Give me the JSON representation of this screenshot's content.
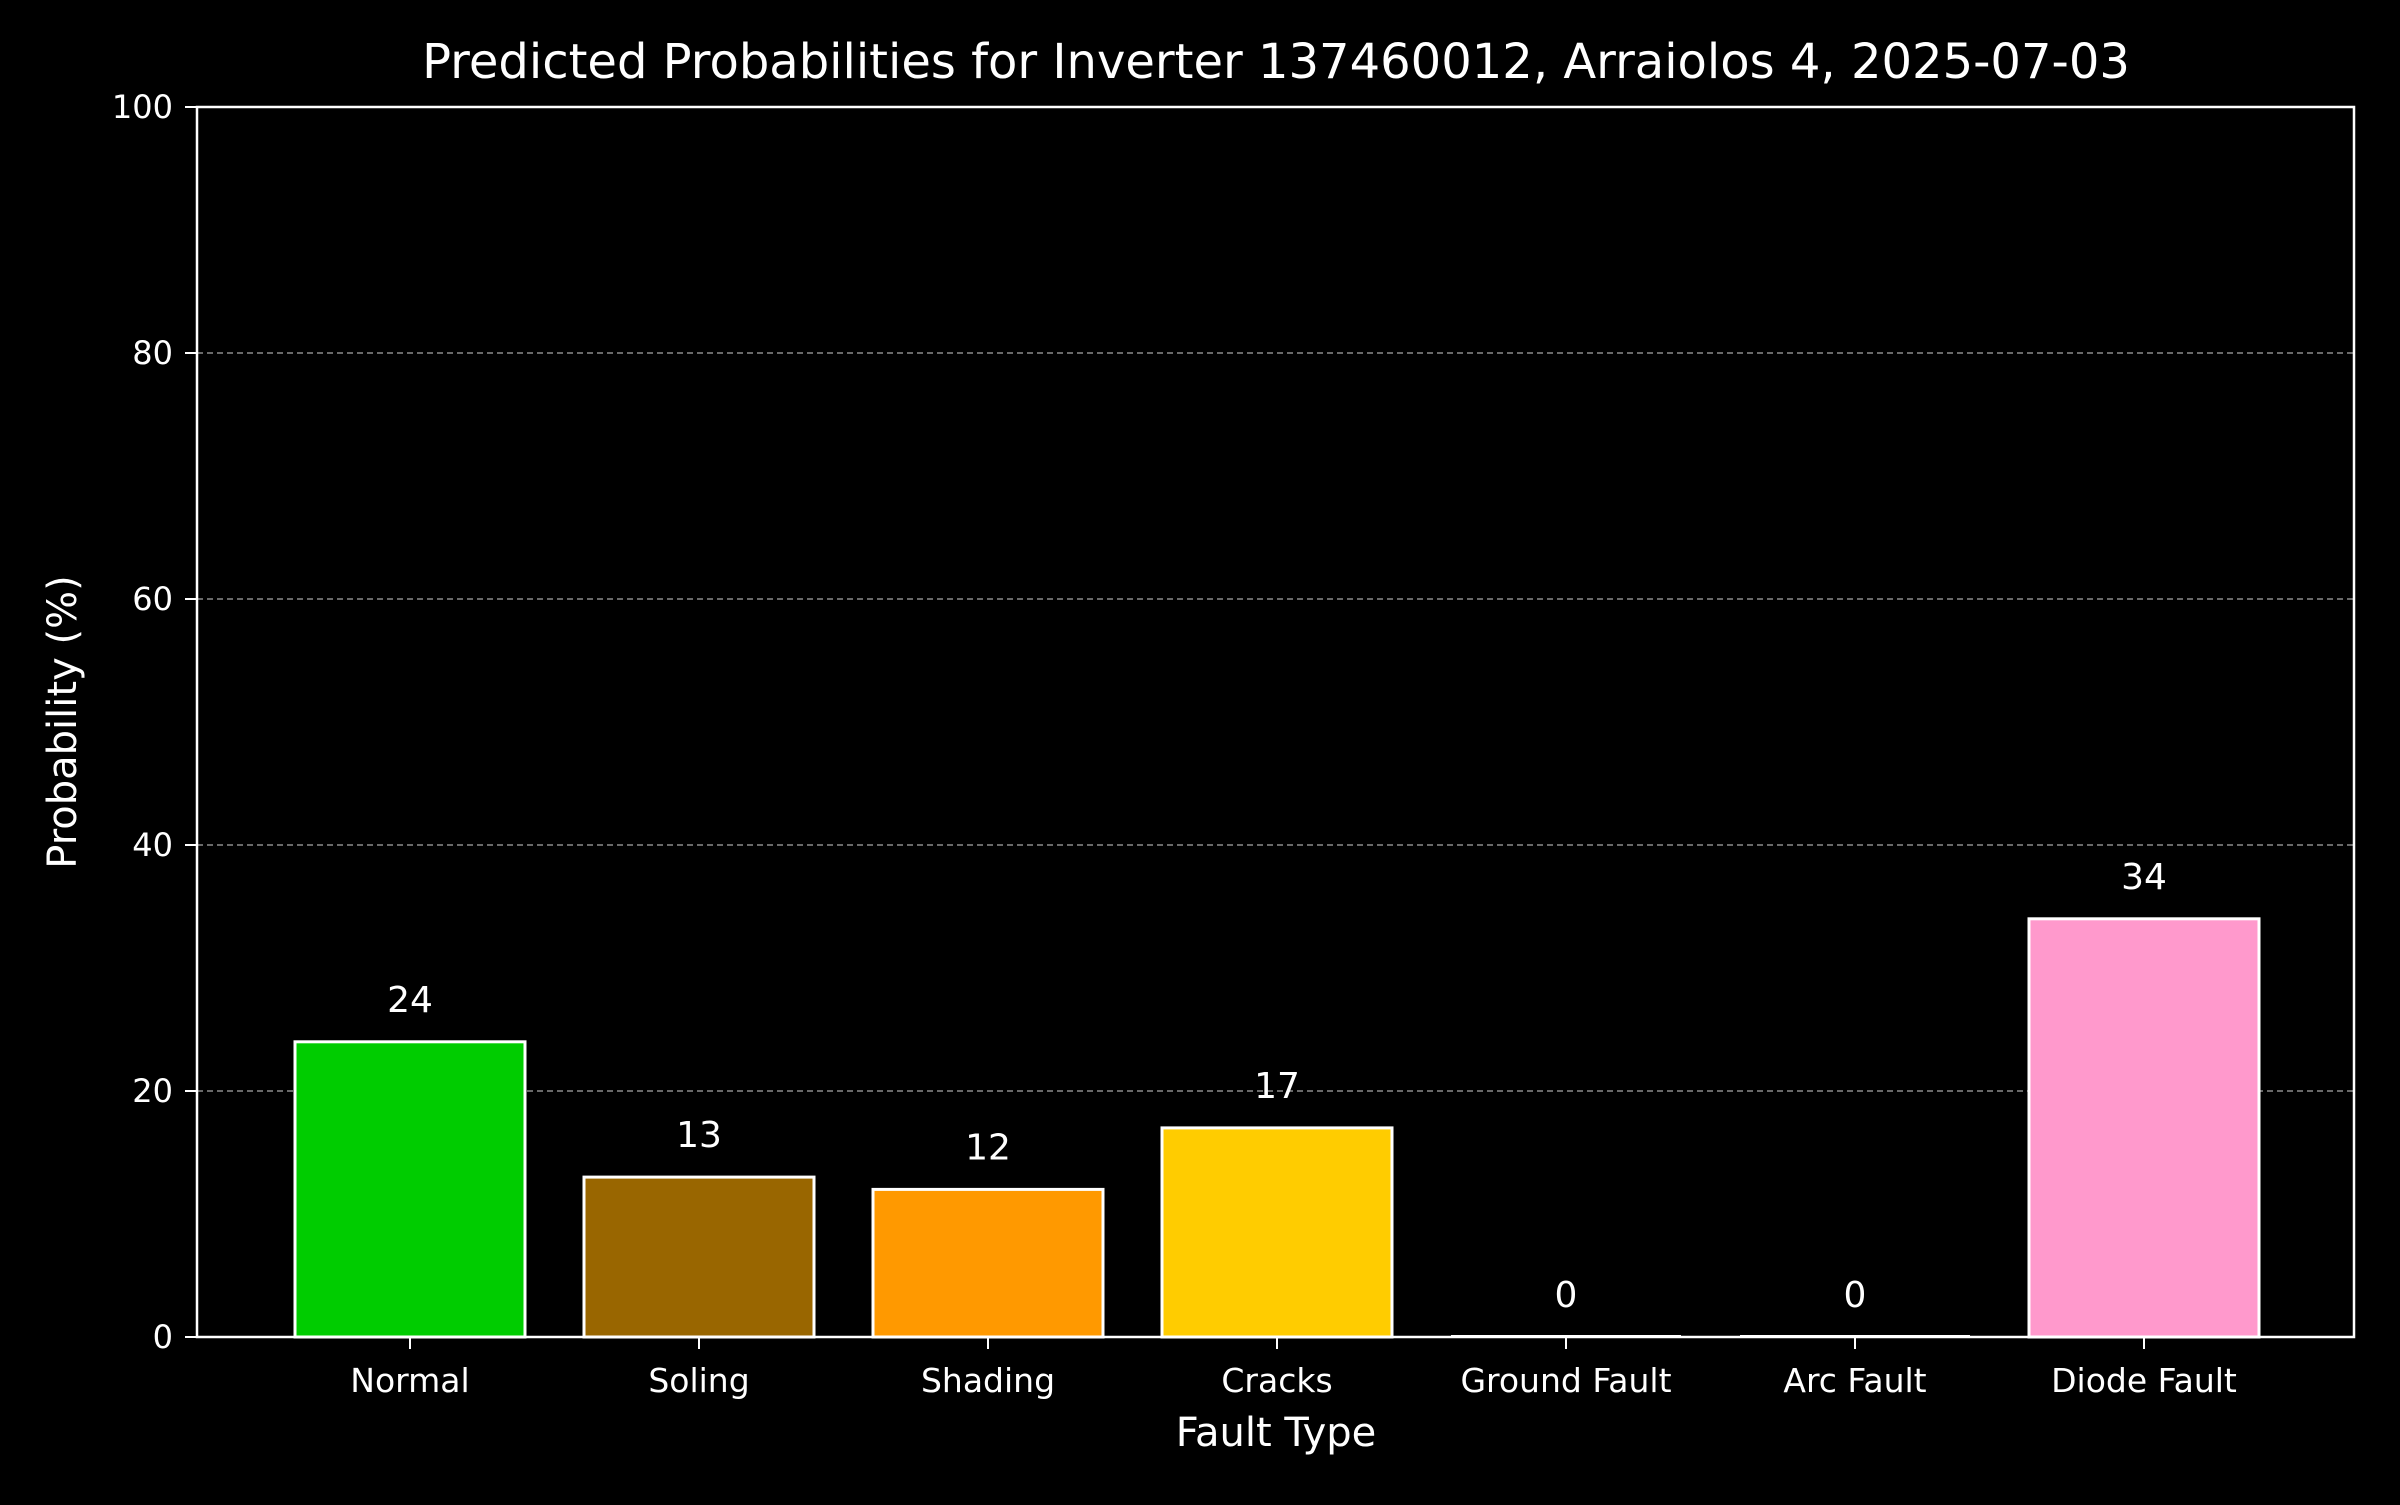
{
  "chart_data": {
    "type": "bar",
    "title": "Predicted Probabilities for Inverter 137460012, Arraiolos 4, 2025-07-03",
    "xlabel": "Fault Type",
    "ylabel": "Probability (%)",
    "ylim": [
      0,
      100
    ],
    "yticks": [
      "0",
      "20",
      "40",
      "60",
      "80",
      "100"
    ],
    "grid": "horizontal dashed",
    "categories": [
      "Normal",
      "Soling",
      "Shading",
      "Cracks",
      "Ground Fault",
      "Arc Fault",
      "Diode Fault"
    ],
    "values": [
      24,
      13,
      12,
      17,
      0,
      0,
      34
    ],
    "value_labels": [
      "24",
      "13",
      "12",
      "17",
      "0",
      "0",
      "34"
    ],
    "colors": [
      "#00cc00",
      "#996600",
      "#ff9900",
      "#ffcc00",
      "#ff0000",
      "#990099",
      "#ff99cc"
    ]
  }
}
